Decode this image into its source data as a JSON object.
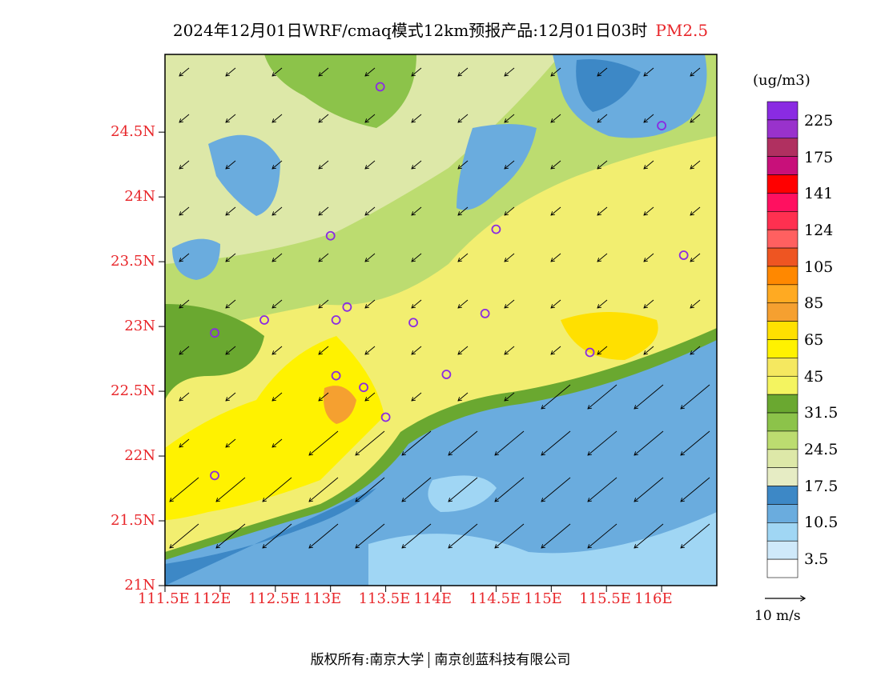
{
  "header": {
    "title": "2024年12月01日WRF/cmaq模式12km预报产品:12月01日03时",
    "pollutant": "PM2.5"
  },
  "axes": {
    "lat_labels": [
      "24.5N",
      "24N",
      "23.5N",
      "23N",
      "22.5N",
      "22N",
      "21.5N",
      "21N"
    ],
    "lon_labels": [
      "111.5E",
      "112E",
      "112.5E",
      "113E",
      "113.5E",
      "114E",
      "114.5E",
      "115E",
      "115.5E",
      "116E"
    ],
    "lat_range": [
      21.0,
      25.1
    ],
    "lon_range": [
      111.5,
      116.5
    ]
  },
  "legend": {
    "unit": "(ug/m3)",
    "labels": [
      "225",
      "175",
      "141",
      "124",
      "105",
      "85",
      "65",
      "45",
      "31.5",
      "24.5",
      "17.5",
      "10.5",
      "3.5"
    ],
    "colors_top_to_bottom": [
      "#8a2be2",
      "#9932cc",
      "#b03060",
      "#c8107a",
      "#ff0000",
      "#ff1060",
      "#ff3050",
      "#ff6060",
      "#ee5522",
      "#ff8800",
      "#ffaa22",
      "#f5a030",
      "#ffe000",
      "#fff200",
      "#f5e860",
      "#f4f460",
      "#6aa830",
      "#8cc34a",
      "#bcdc70",
      "#dde8a8",
      "#e6ecc4",
      "#3d88c6",
      "#6aacde",
      "#a0d6f4",
      "#cfe9fa",
      "#ffffff"
    ]
  },
  "wind_reference": {
    "label": "10 m/s"
  },
  "markers": [
    {
      "lon": 113.45,
      "lat": 24.85
    },
    {
      "lon": 116.0,
      "lat": 24.55
    },
    {
      "lon": 113.0,
      "lat": 23.7
    },
    {
      "lon": 114.5,
      "lat": 23.75
    },
    {
      "lon": 116.2,
      "lat": 23.55
    },
    {
      "lon": 112.4,
      "lat": 23.05
    },
    {
      "lon": 113.05,
      "lat": 23.05
    },
    {
      "lon": 113.15,
      "lat": 23.15
    },
    {
      "lon": 113.75,
      "lat": 23.03
    },
    {
      "lon": 114.4,
      "lat": 23.1
    },
    {
      "lon": 111.95,
      "lat": 22.95
    },
    {
      "lon": 115.35,
      "lat": 22.8
    },
    {
      "lon": 113.05,
      "lat": 22.62
    },
    {
      "lon": 113.3,
      "lat": 22.53
    },
    {
      "lon": 114.05,
      "lat": 22.63
    },
    {
      "lon": 113.5,
      "lat": 22.3
    },
    {
      "lon": 111.95,
      "lat": 21.85
    }
  ],
  "copyright": {
    "owner": "版权所有:南京大学",
    "partner": "南京创蓝科技有限公司"
  }
}
